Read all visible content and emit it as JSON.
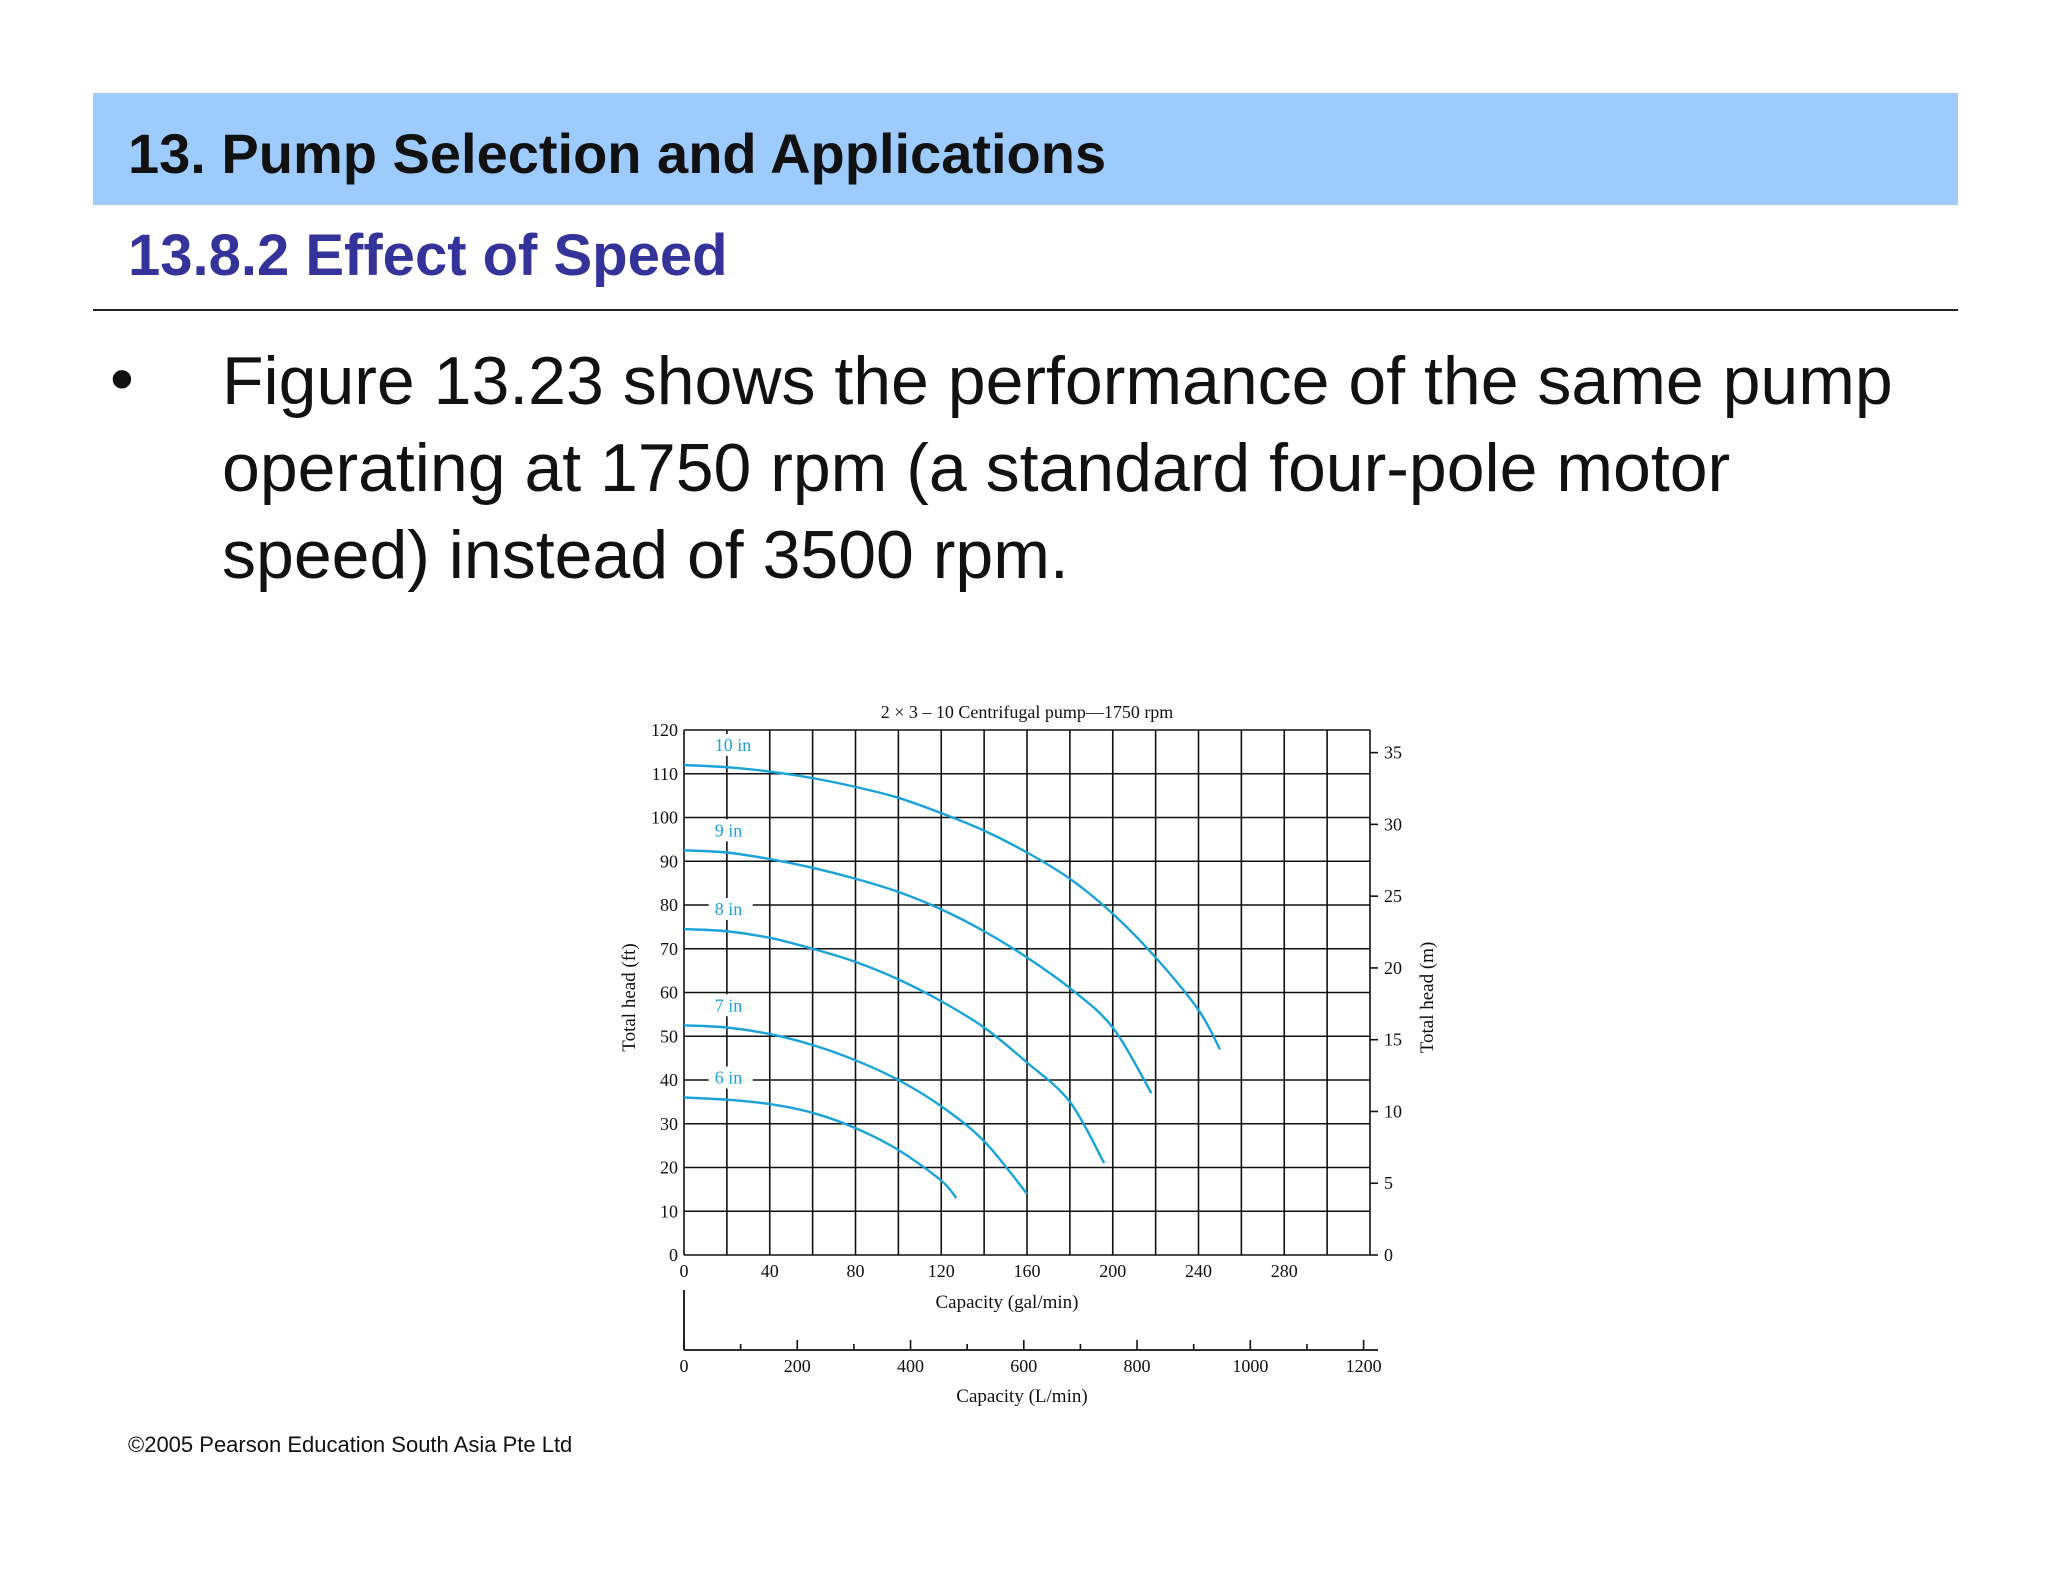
{
  "header": {
    "title": "13. Pump Selection and Applications",
    "subtitle": "13.8.2 Effect of Speed"
  },
  "body": {
    "bullet": "•",
    "text": "Figure 13.23 shows the performance of the same pump operating at 1750 rpm (a standard four-pole motor speed) instead of 3500 rpm."
  },
  "footer": {
    "copyright": "©2005 Pearson Education South Asia Pte Ltd"
  },
  "colors": {
    "title_bar": "#9ecbfd",
    "subtitle": "#333399",
    "curve": "#1aa3d8"
  },
  "chart_data": {
    "type": "line",
    "title": "2 × 3 – 10 Centrifugal pump—1750 rpm",
    "xlabel": "Capacity (gal/min)",
    "xlabel_secondary": "Capacity (L/min)",
    "ylabel": "Total head (ft)",
    "ylabel_secondary": "Total head (m)",
    "xlim": [
      0,
      320
    ],
    "ylim": [
      0,
      120
    ],
    "xticks": [
      "0",
      "40",
      "80",
      "120",
      "160",
      "200",
      "240",
      "280"
    ],
    "yticks": [
      "0",
      "10",
      "20",
      "30",
      "40",
      "50",
      "60",
      "70",
      "80",
      "90",
      "100",
      "110",
      "120"
    ],
    "xticks_secondary": [
      "0",
      "200",
      "400",
      "600",
      "800",
      "1000",
      "1200"
    ],
    "yticks_secondary": [
      "0",
      "5",
      "10",
      "15",
      "20",
      "25",
      "30",
      "35"
    ],
    "grid": true,
    "series": [
      {
        "name": "10 in",
        "x": [
          0,
          20,
          40,
          60,
          80,
          100,
          120,
          140,
          160,
          180,
          200,
          220,
          240,
          250
        ],
        "y": [
          112,
          111.5,
          110.5,
          109,
          107,
          104.5,
          101,
          97,
          92,
          86,
          78,
          68,
          56,
          47
        ]
      },
      {
        "name": "9 in",
        "x": [
          0,
          20,
          40,
          60,
          80,
          100,
          120,
          140,
          160,
          180,
          200,
          218
        ],
        "y": [
          92.5,
          92,
          90.5,
          88.5,
          86,
          83,
          79,
          74,
          68,
          61,
          52,
          37
        ]
      },
      {
        "name": "8 in",
        "x": [
          0,
          20,
          40,
          60,
          80,
          100,
          120,
          140,
          160,
          180,
          196
        ],
        "y": [
          74.5,
          74,
          72.5,
          70,
          67,
          63,
          58,
          52,
          44,
          35,
          21
        ]
      },
      {
        "name": "7 in",
        "x": [
          0,
          20,
          40,
          60,
          80,
          100,
          120,
          140,
          160
        ],
        "y": [
          52.5,
          52,
          50.5,
          48,
          44.5,
          40,
          34,
          26,
          14
        ]
      },
      {
        "name": "6 in",
        "x": [
          0,
          20,
          40,
          60,
          80,
          100,
          120,
          127
        ],
        "y": [
          36,
          35.5,
          34.5,
          32.5,
          29,
          24,
          17,
          13
        ]
      }
    ]
  }
}
